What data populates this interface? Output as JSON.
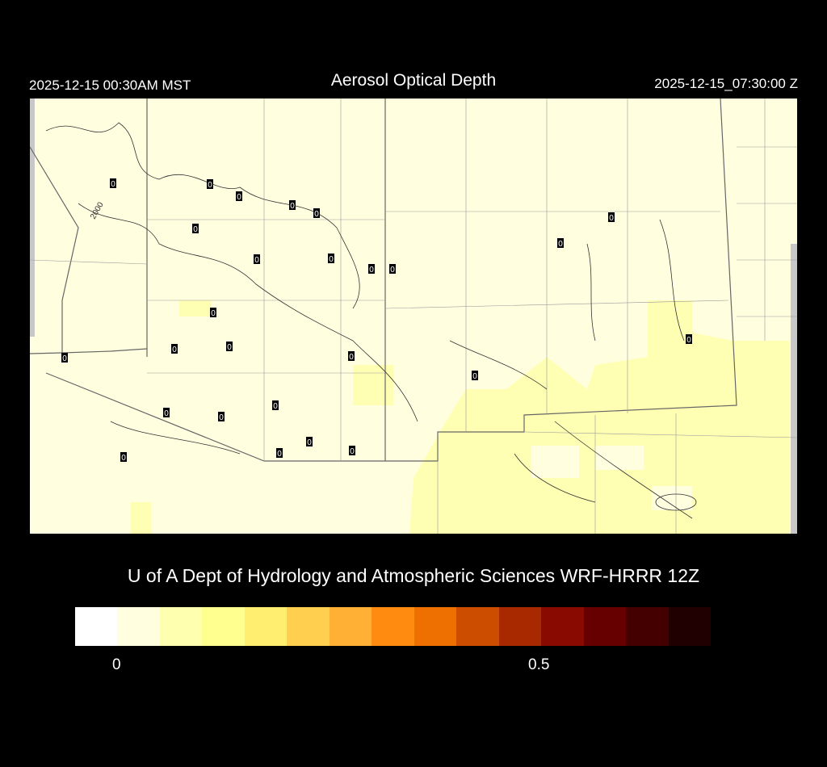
{
  "header": {
    "title": "Aerosol Optical Depth",
    "local_time": "2025-12-15 00:30AM MST",
    "utc_time": "2025-12-15_07:30:00 Z"
  },
  "map": {
    "contour_label": "2000",
    "background_color": "#ffffe0",
    "station_values": [
      "0",
      "0",
      "0",
      "0",
      "0",
      "0",
      "0",
      "0",
      "0",
      "0",
      "0",
      "0",
      "0",
      "0",
      "0",
      "0",
      "0",
      "0",
      "0",
      "0",
      "0",
      "0",
      "0",
      "0",
      "0",
      "0"
    ]
  },
  "credit": "U of A Dept of Hydrology and Atmospheric Sciences WRF-HRRR 12Z",
  "colorbar": {
    "colors": [
      "#ffffff",
      "#ffffe0",
      "#ffffb0",
      "#ffff90",
      "#ffee70",
      "#ffd050",
      "#ffb035",
      "#ff8c10",
      "#ee7000",
      "#cc4c00",
      "#a82800",
      "#880a00",
      "#660000",
      "#440000",
      "#200000"
    ],
    "tick_labels": [
      "0",
      "0.5"
    ]
  }
}
